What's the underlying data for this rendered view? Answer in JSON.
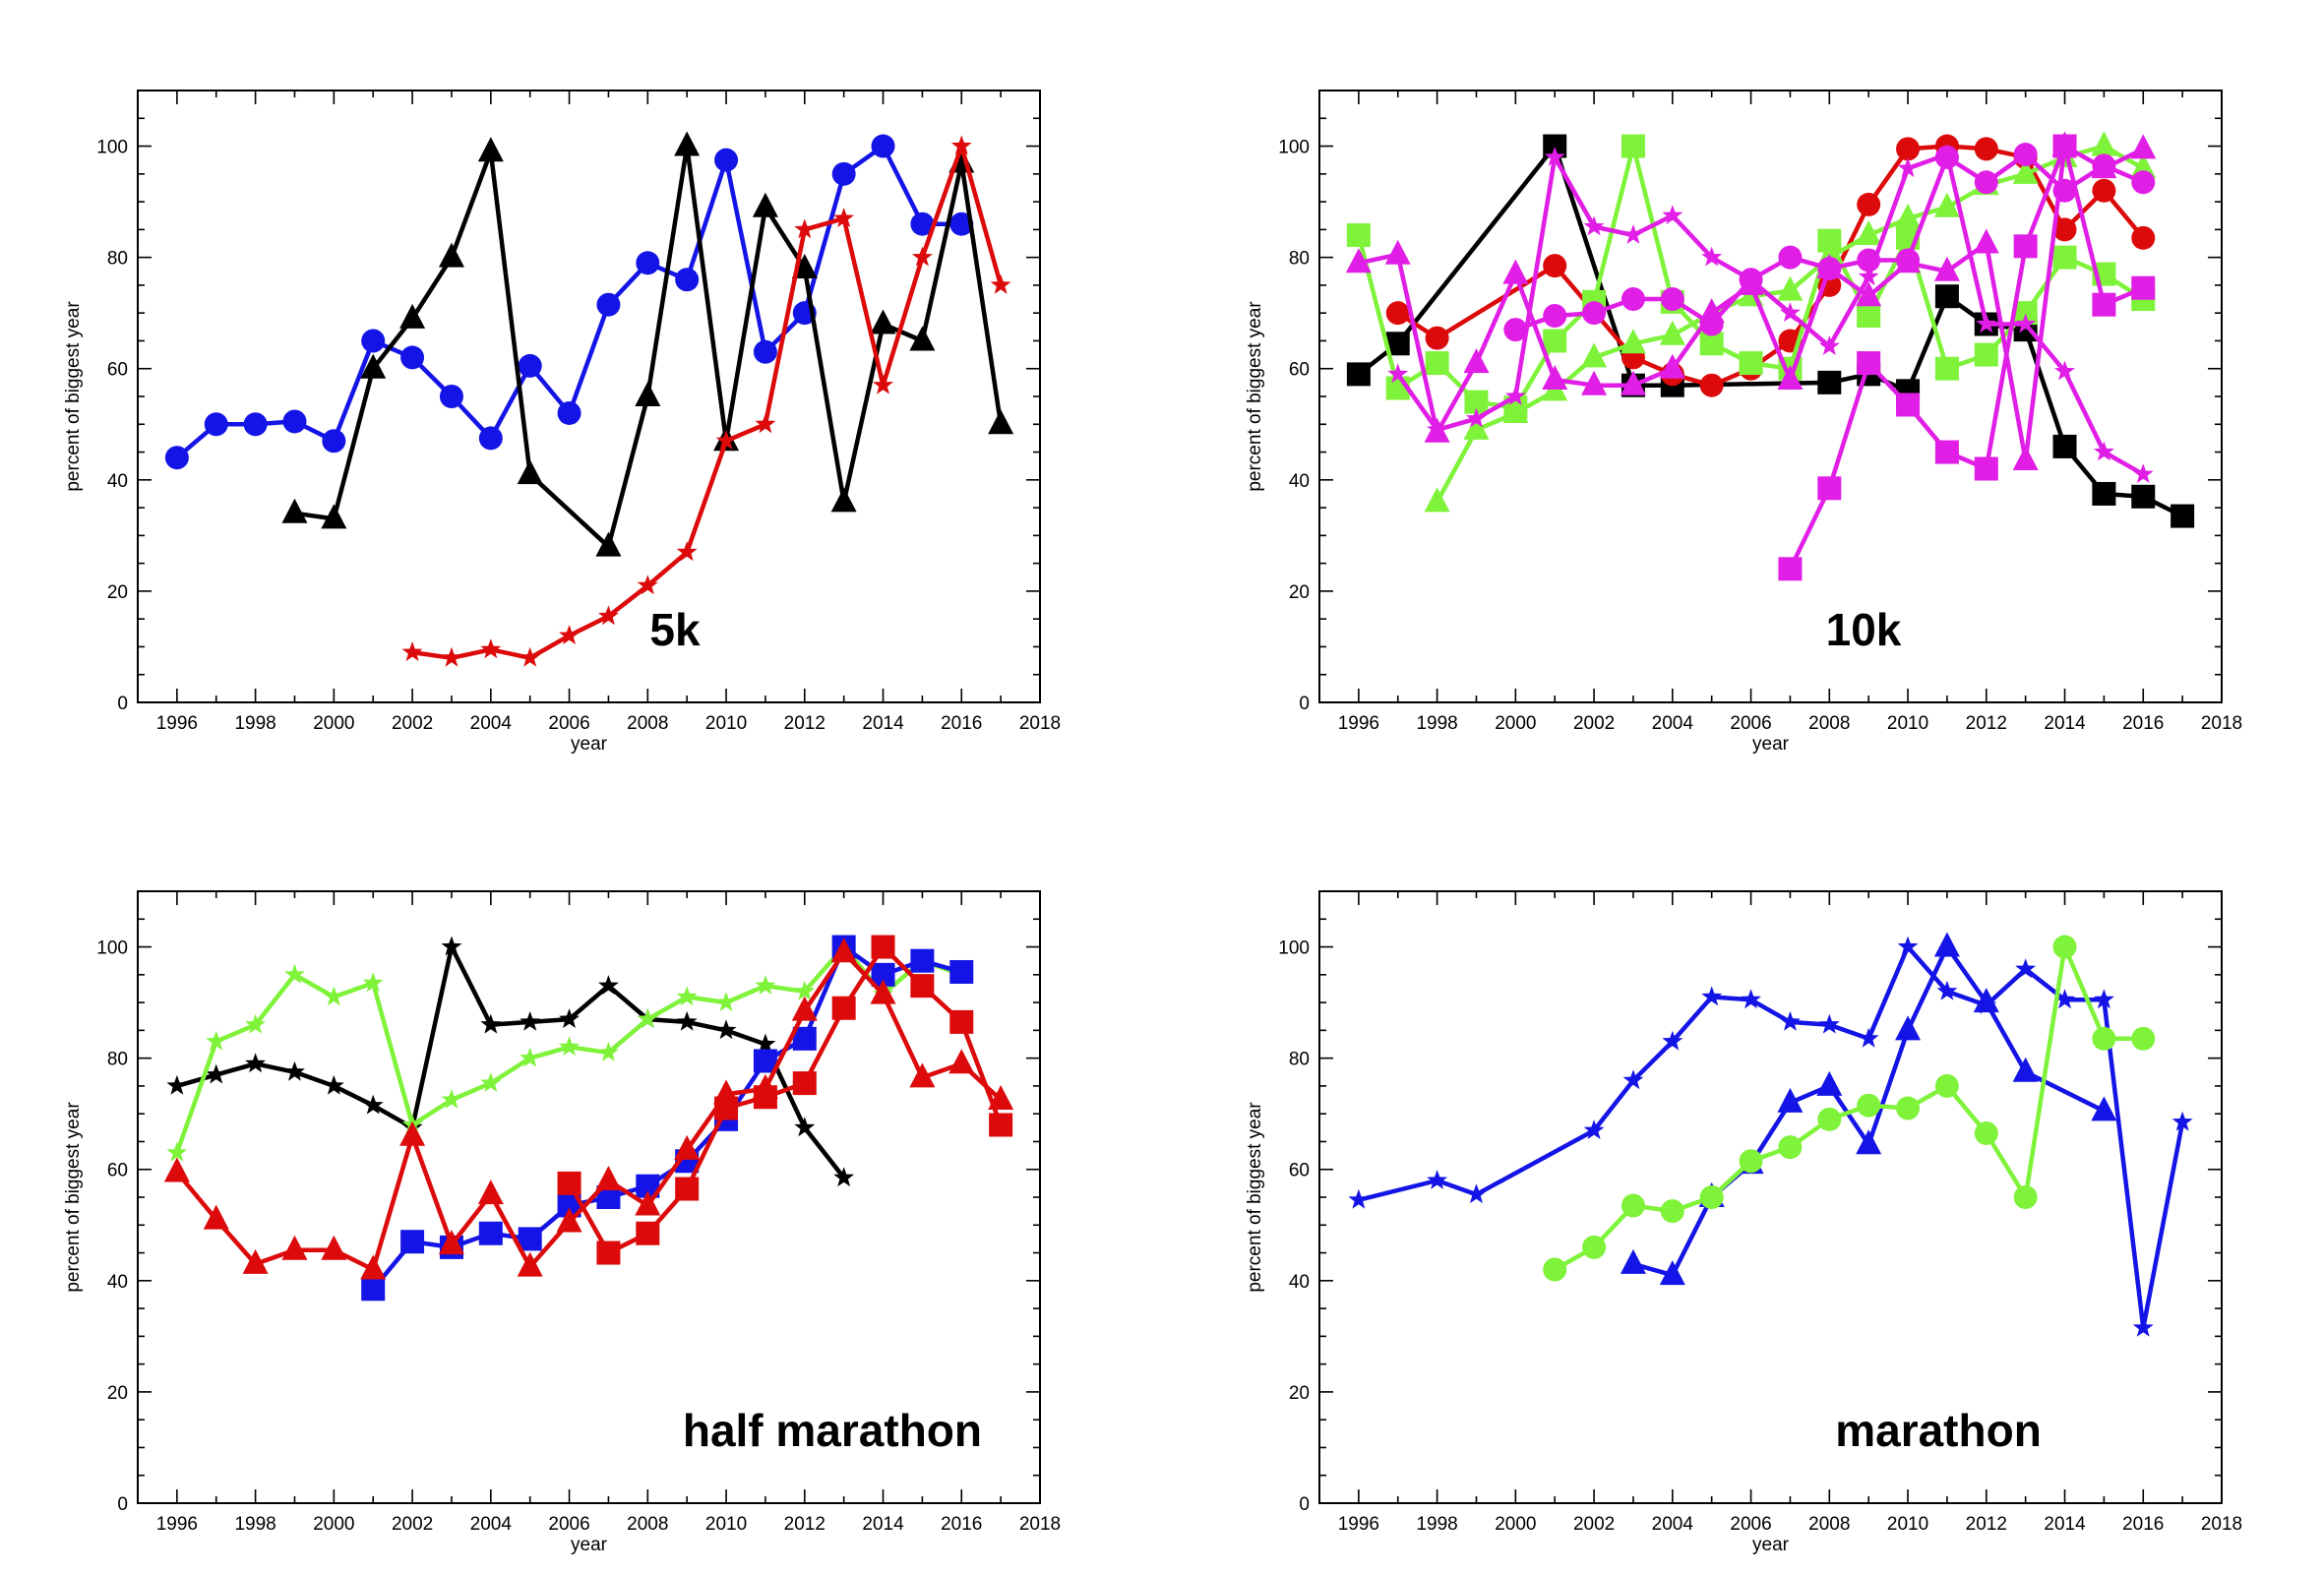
{
  "colors": {
    "black": "#000000",
    "blue": "#1414e6",
    "red": "#dc0a0a",
    "green": "#7ff23a",
    "magenta": "#e01ee6"
  },
  "chart_data": [
    {
      "type": "line",
      "title": "5k",
      "xlabel": "year",
      "ylabel": "percent of biggest year",
      "xlim": [
        1995,
        2018
      ],
      "ylim": [
        0,
        110
      ],
      "xticks": [
        1996,
        1998,
        2000,
        2002,
        2004,
        2006,
        2008,
        2010,
        2012,
        2014,
        2016,
        2018
      ],
      "yticks": [
        0,
        20,
        40,
        60,
        80,
        100
      ],
      "grid": false,
      "series": [
        {
          "color": "blue",
          "marker": "circle",
          "x": [
            1996,
            1997,
            1998,
            1999,
            2000,
            2001,
            2002,
            2003,
            2004,
            2005,
            2006,
            2007,
            2008,
            2009,
            2010,
            2011,
            2012,
            2013,
            2014,
            2015,
            2016
          ],
          "y": [
            44,
            50,
            50,
            50.5,
            47,
            65,
            62,
            55,
            47.5,
            60.5,
            52,
            71.5,
            79,
            76,
            97.5,
            63,
            70,
            95,
            100,
            86,
            86
          ]
        },
        {
          "color": "black",
          "marker": "triangle",
          "x": [
            1999,
            2000,
            2001,
            2002,
            2003,
            2004,
            2005,
            2007,
            2008,
            2009,
            2010,
            2011,
            2012,
            2013,
            2014,
            2015,
            2016,
            2017
          ],
          "y": [
            34,
            33,
            60,
            69,
            80,
            99,
            41,
            28,
            55,
            100,
            47,
            89,
            78,
            36,
            68,
            65,
            97,
            50
          ]
        },
        {
          "color": "red",
          "marker": "star",
          "x": [
            2002,
            2003,
            2004,
            2005,
            2006,
            2007,
            2008,
            2009,
            2010,
            2011,
            2012,
            2013,
            2014,
            2015,
            2016,
            2017
          ],
          "y": [
            9,
            8,
            9.5,
            8,
            12,
            15.5,
            21,
            27,
            47,
            50,
            85,
            87,
            57,
            80,
            100,
            75
          ]
        }
      ]
    },
    {
      "type": "line",
      "title": "10k",
      "xlabel": "year",
      "ylabel": "percent of biggest year",
      "xlim": [
        1995,
        2018
      ],
      "ylim": [
        0,
        110
      ],
      "xticks": [
        1996,
        1998,
        2000,
        2002,
        2004,
        2006,
        2008,
        2010,
        2012,
        2014,
        2016,
        2018
      ],
      "yticks": [
        0,
        20,
        40,
        60,
        80,
        100
      ],
      "grid": false,
      "series": [
        {
          "color": "black",
          "marker": "square",
          "x": [
            1996,
            1997,
            2001,
            2003,
            2004,
            2008,
            2009,
            2010,
            2011,
            2012,
            2013,
            2014,
            2015,
            2016,
            2017
          ],
          "y": [
            59,
            64.5,
            100,
            57,
            57,
            57.5,
            59,
            56,
            73,
            68,
            67,
            46,
            37.5,
            37,
            33.5
          ]
        },
        {
          "color": "red",
          "marker": "circle",
          "x": [
            1997,
            1998,
            2001,
            2003,
            2004,
            2005,
            2006,
            2007,
            2008,
            2009,
            2010,
            2011,
            2012,
            2013,
            2014,
            2015,
            2016
          ],
          "y": [
            70,
            65.5,
            78.5,
            62,
            59,
            57,
            60,
            65,
            75,
            89.5,
            99.5,
            100,
            99.5,
            98,
            85,
            92,
            83.5
          ]
        },
        {
          "color": "green",
          "marker": "square",
          "x": [
            1996,
            1997,
            1998,
            1999,
            2000,
            2001,
            2002,
            2003,
            2004,
            2005,
            2006,
            2007,
            2008,
            2009,
            2010,
            2011,
            2012,
            2013,
            2014,
            2015,
            2016
          ],
          "y": [
            84,
            56.5,
            61,
            54,
            53,
            65,
            72,
            100,
            72,
            64.5,
            61,
            60,
            83,
            69.5,
            83.5,
            60,
            62.5,
            70,
            80,
            77,
            72.5
          ]
        },
        {
          "color": "green",
          "marker": "triangle",
          "x": [
            1998,
            1999,
            2000,
            2001,
            2002,
            2003,
            2004,
            2005,
            2006,
            2007,
            2008,
            2009,
            2010,
            2011,
            2012,
            2013,
            2014,
            2015,
            2016
          ],
          "y": [
            36,
            49,
            52,
            56,
            62,
            64.5,
            66,
            70,
            73,
            74,
            80,
            84,
            87,
            89,
            93,
            95,
            98,
            100,
            96
          ]
        },
        {
          "color": "magenta",
          "marker": "circle",
          "x": [
            2000,
            2001,
            2002,
            2003,
            2004,
            2005,
            2006,
            2007,
            2008,
            2009,
            2010,
            2011,
            2012,
            2013,
            2014,
            2015,
            2016
          ],
          "y": [
            67,
            69.5,
            70,
            72.5,
            72.5,
            68,
            76,
            80,
            78,
            79.5,
            79.5,
            98,
            93.5,
            98.5,
            92,
            96.5,
            93.5
          ]
        },
        {
          "color": "magenta",
          "marker": "triangle",
          "x": [
            1996,
            1997,
            1998,
            1999,
            2000,
            2001,
            2002,
            2003,
            2004,
            2005,
            2006,
            2007,
            2008,
            2009,
            2010,
            2011,
            2012,
            2013,
            2014,
            2015,
            2016
          ],
          "y": [
            79,
            80.5,
            48.5,
            61,
            77,
            58,
            57,
            57,
            60,
            70,
            75,
            58,
            78,
            73,
            79,
            77.5,
            82.5,
            43.5,
            100,
            96,
            99.5
          ]
        },
        {
          "color": "magenta",
          "marker": "star",
          "x": [
            1997,
            1998,
            1999,
            2000,
            2001,
            2002,
            2003,
            2004,
            2005,
            2006,
            2007,
            2008,
            2009,
            2010,
            2011,
            2012,
            2013,
            2014,
            2015,
            2016
          ],
          "y": [
            59,
            49,
            51,
            55,
            98,
            85.5,
            84,
            87.5,
            80,
            76,
            70,
            64,
            76.5,
            96,
            98.5,
            68,
            68,
            59.5,
            45,
            41
          ]
        },
        {
          "color": "magenta",
          "marker": "square",
          "x": [
            2007,
            2008,
            2009,
            2010,
            2011,
            2012,
            2013,
            2014,
            2015,
            2016
          ],
          "y": [
            24,
            38.5,
            61,
            53.5,
            45,
            42,
            82,
            100,
            71.5,
            74.5
          ]
        }
      ]
    },
    {
      "type": "line",
      "title": "half marathon",
      "xlabel": "year",
      "ylabel": "percent of biggest year",
      "xlim": [
        1995,
        2018
      ],
      "ylim": [
        0,
        110
      ],
      "xticks": [
        1996,
        1998,
        2000,
        2002,
        2004,
        2006,
        2008,
        2010,
        2012,
        2014,
        2016,
        2018
      ],
      "yticks": [
        0,
        20,
        40,
        60,
        80,
        100
      ],
      "grid": false,
      "series": [
        {
          "color": "black",
          "marker": "star",
          "x": [
            1996,
            1997,
            1998,
            1999,
            2000,
            2001,
            2002,
            2003,
            2004,
            2005,
            2006,
            2007,
            2008,
            2009,
            2010,
            2011,
            2012,
            2013
          ],
          "y": [
            75,
            77,
            79,
            77.5,
            75,
            71.5,
            67.5,
            100,
            86,
            86.5,
            87,
            93,
            87,
            86.5,
            85,
            82.5,
            67.5,
            58.5
          ]
        },
        {
          "color": "green",
          "marker": "star",
          "x": [
            1996,
            1997,
            1998,
            1999,
            2000,
            2001,
            2002,
            2003,
            2004,
            2005,
            2006,
            2007,
            2008,
            2009,
            2010,
            2011,
            2012,
            2013,
            2014,
            2015,
            2016
          ],
          "y": [
            63,
            83,
            86,
            95,
            91,
            93.5,
            68,
            72.5,
            75.5,
            80,
            82,
            81,
            87,
            91,
            90,
            93,
            92,
            100,
            91.5,
            97.5,
            95
          ]
        },
        {
          "color": "blue",
          "marker": "square",
          "x": [
            2001,
            2002,
            2003,
            2004,
            2005,
            2006,
            2007,
            2008,
            2009,
            2010,
            2011,
            2012,
            2013,
            2014,
            2015,
            2016
          ],
          "y": [
            38.5,
            47,
            46,
            48.5,
            47.5,
            53.5,
            55,
            57,
            61.5,
            69,
            79.5,
            83.5,
            100,
            95,
            97.5,
            95.5
          ]
        },
        {
          "color": "red",
          "marker": "triangle",
          "x": [
            1996,
            1997,
            1998,
            1999,
            2000,
            2001,
            2002,
            2003,
            2004,
            2005,
            2006,
            2007,
            2008,
            2009,
            2010,
            2011,
            2012,
            2013,
            2014,
            2015,
            2016,
            2017
          ],
          "y": [
            59.5,
            51,
            43,
            45.5,
            45.5,
            42,
            66,
            46.5,
            55.5,
            42.5,
            50.5,
            58,
            53.5,
            63.5,
            73.5,
            74.5,
            88.5,
            99,
            91.5,
            76.5,
            79,
            72.5
          ]
        },
        {
          "color": "red",
          "marker": "square",
          "x": [
            2006,
            2007,
            2008,
            2009,
            2010,
            2011,
            2012,
            2013,
            2014,
            2015,
            2016,
            2017
          ],
          "y": [
            57.5,
            45,
            48.5,
            56.5,
            71,
            73,
            75.5,
            89,
            100,
            93,
            86.5,
            68
          ]
        }
      ]
    },
    {
      "type": "line",
      "title": "marathon",
      "xlabel": "year",
      "ylabel": "percent of biggest year",
      "xlim": [
        1995,
        2018
      ],
      "ylim": [
        0,
        110
      ],
      "xticks": [
        1996,
        1998,
        2000,
        2002,
        2004,
        2006,
        2008,
        2010,
        2012,
        2014,
        2016,
        2018
      ],
      "yticks": [
        0,
        20,
        40,
        60,
        80,
        100
      ],
      "grid": false,
      "series": [
        {
          "color": "blue",
          "marker": "star",
          "x": [
            1996,
            1998,
            1999,
            2002,
            2003,
            2004,
            2005,
            2006,
            2007,
            2008,
            2009,
            2010,
            2011,
            2012,
            2013,
            2014,
            2015,
            2016,
            2017
          ],
          "y": [
            54.5,
            58,
            55.5,
            67,
            76,
            83,
            91,
            90.5,
            86.5,
            86,
            83.5,
            100,
            92,
            89.5,
            96,
            90.5,
            90.5,
            31.5,
            68.5
          ]
        },
        {
          "color": "blue",
          "marker": "triangle",
          "x": [
            2003,
            2004,
            2005,
            2006,
            2007,
            2008,
            2009,
            2010,
            2011,
            2012,
            2013,
            2015
          ],
          "y": [
            43,
            41,
            55,
            61,
            72,
            75,
            64.5,
            85,
            100,
            90,
            77.5,
            70.5
          ]
        },
        {
          "color": "green",
          "marker": "circle",
          "x": [
            2001,
            2002,
            2003,
            2004,
            2005,
            2006,
            2007,
            2008,
            2009,
            2010,
            2011,
            2012,
            2013,
            2014,
            2015,
            2016
          ],
          "y": [
            42,
            46,
            53.5,
            52.5,
            55,
            61.5,
            64,
            69,
            71.5,
            71,
            75,
            66.5,
            55,
            100,
            83.5,
            83.5
          ]
        }
      ]
    }
  ]
}
